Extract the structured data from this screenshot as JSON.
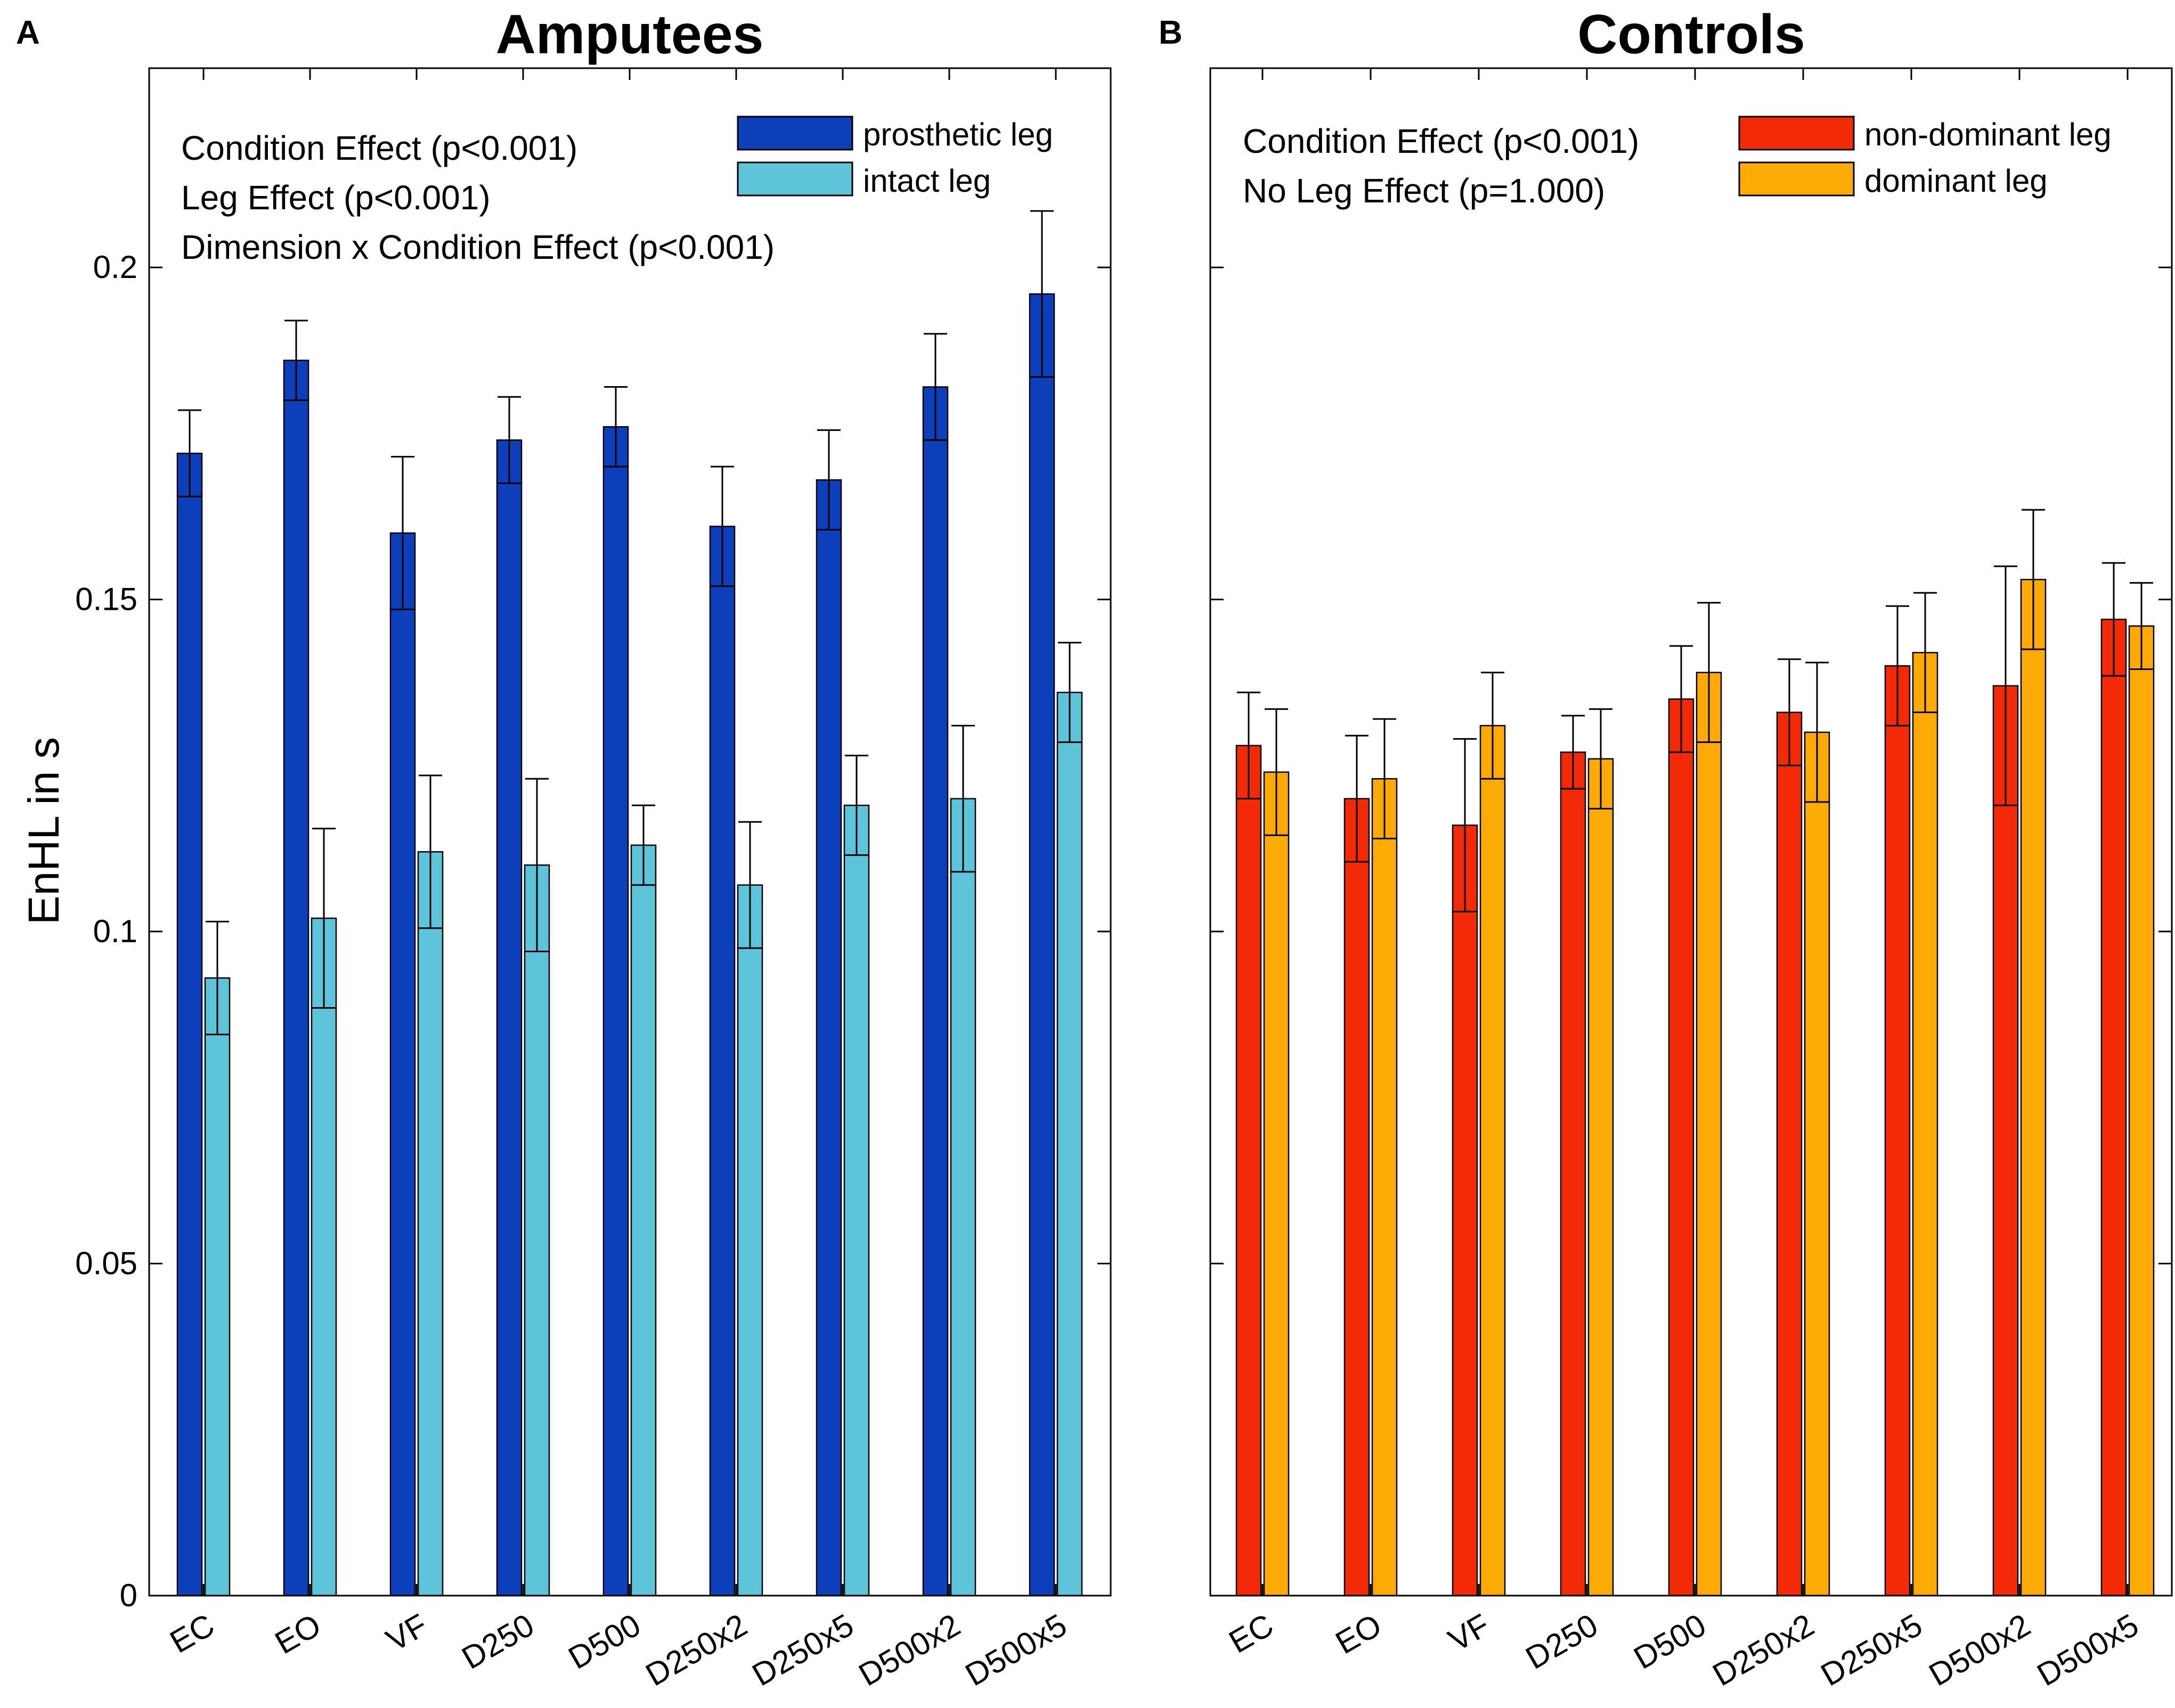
{
  "figure": {
    "ylabel": "EnHL in s"
  },
  "chart_data": [
    {
      "type": "bar",
      "panel_letter": "A",
      "title": "Amputees",
      "xlabel": "",
      "ylabel": "EnHL in s",
      "ylim": [
        0,
        0.23
      ],
      "yticks": [
        "0",
        "0.05",
        "0.1",
        "0.15",
        "0.2"
      ],
      "categories": [
        "EC",
        "EO",
        "VF",
        "D250",
        "D500",
        "D250x2",
        "D250x5",
        "D500x2",
        "D500x5"
      ],
      "series": [
        {
          "name": "prosthetic leg",
          "color": "#0d3fbb",
          "values": [
            0.172,
            0.186,
            0.16,
            0.174,
            0.176,
            0.161,
            0.168,
            0.182,
            0.196
          ],
          "error": [
            0.0065,
            0.006,
            0.0115,
            0.0065,
            0.006,
            0.009,
            0.0075,
            0.008,
            0.0125
          ]
        },
        {
          "name": "intact leg",
          "color": "#5ec4da",
          "values": [
            0.093,
            0.102,
            0.112,
            0.11,
            0.113,
            0.107,
            0.119,
            0.12,
            0.136
          ],
          "error": [
            0.0085,
            0.0135,
            0.0115,
            0.013,
            0.006,
            0.0095,
            0.0075,
            0.011,
            0.0075
          ]
        }
      ],
      "annotations": [
        "Condition Effect (p<0.001)",
        "Leg Effect (p<0.001)",
        "Dimension x Condition Effect (p<0.001)"
      ],
      "legend_position": "top-right"
    },
    {
      "type": "bar",
      "panel_letter": "B",
      "title": "Controls",
      "xlabel": "",
      "ylabel": "",
      "ylim": [
        0,
        0.23
      ],
      "yticks": [],
      "categories": [
        "EC",
        "EO",
        "VF",
        "D250",
        "D500",
        "D250x2",
        "D250x5",
        "D500x2",
        "D500x5"
      ],
      "series": [
        {
          "name": "non-dominant leg",
          "color": "#f22a08",
          "values": [
            0.128,
            0.12,
            0.116,
            0.127,
            0.135,
            0.133,
            0.14,
            0.137,
            0.147
          ],
          "error": [
            0.008,
            0.0095,
            0.013,
            0.0055,
            0.008,
            0.008,
            0.009,
            0.018,
            0.0085
          ]
        },
        {
          "name": "dominant leg",
          "color": "#fbaa06",
          "values": [
            0.124,
            0.123,
            0.131,
            0.126,
            0.139,
            0.13,
            0.142,
            0.153,
            0.146
          ],
          "error": [
            0.0095,
            0.009,
            0.008,
            0.0075,
            0.0105,
            0.0105,
            0.009,
            0.0105,
            0.0065
          ]
        }
      ],
      "annotations": [
        "Condition Effect (p<0.001)",
        "No Leg Effect (p=1.000)"
      ],
      "legend_position": "top-right"
    }
  ]
}
